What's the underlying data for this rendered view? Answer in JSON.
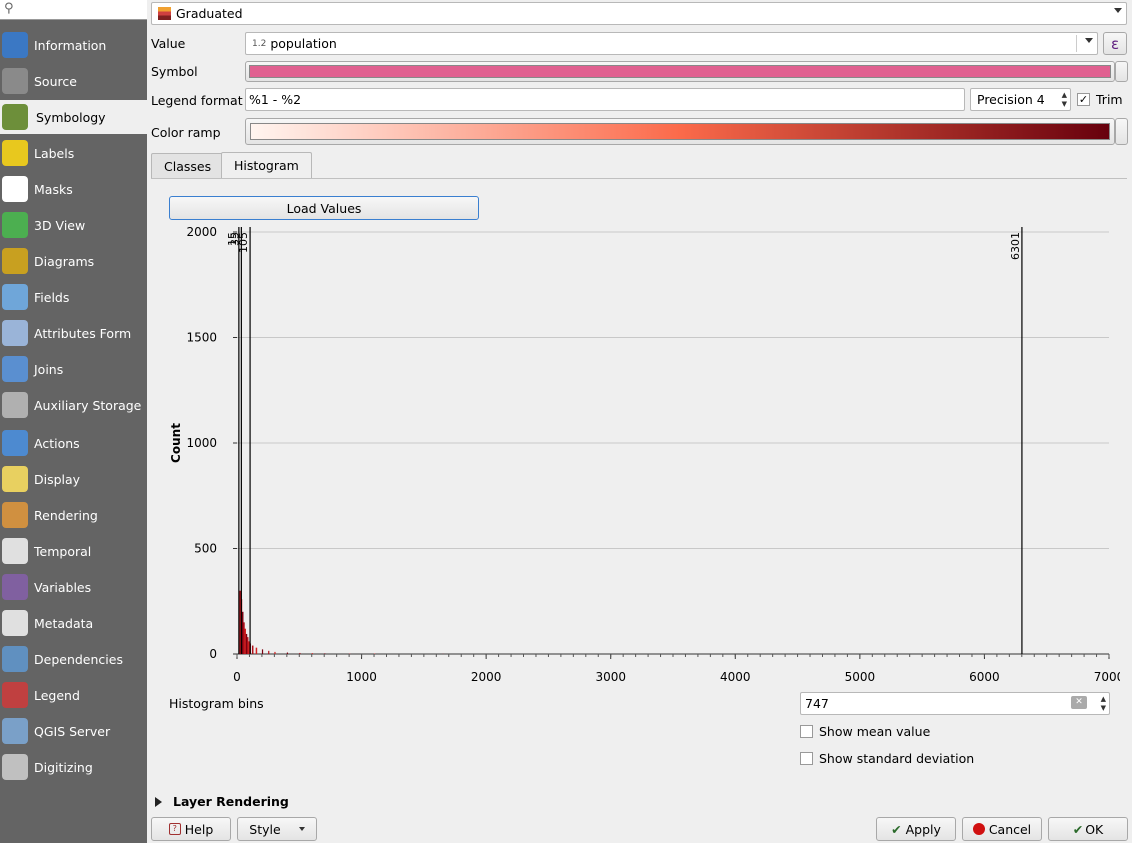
{
  "sidebar": {
    "search_placeholder": "",
    "items": [
      {
        "label": "Information",
        "icon": "info-icon",
        "color": "#3b78c4"
      },
      {
        "label": "Source",
        "icon": "gears-icon",
        "color": "#8a8a8a"
      },
      {
        "label": "Symbology",
        "icon": "paintbrush-icon",
        "color": "#6d8f3a"
      },
      {
        "label": "Labels",
        "icon": "abc-label-icon",
        "color": "#e8c81e"
      },
      {
        "label": "Masks",
        "icon": "abc-mask-icon",
        "color": "#ffffff"
      },
      {
        "label": "3D View",
        "icon": "cube-3d-icon",
        "color": "#4caf50"
      },
      {
        "label": "Diagrams",
        "icon": "diagram-icon",
        "color": "#c8a020"
      },
      {
        "label": "Fields",
        "icon": "fields-icon",
        "color": "#6fa6d9"
      },
      {
        "label": "Attributes Form",
        "icon": "form-icon",
        "color": "#9ab4d8"
      },
      {
        "label": "Joins",
        "icon": "joins-icon",
        "color": "#5a8fd0"
      },
      {
        "label": "Auxiliary Storage",
        "icon": "database-icon",
        "color": "#b0b0b0"
      },
      {
        "label": "Actions",
        "icon": "actions-icon",
        "color": "#4d8ad0"
      },
      {
        "label": "Display",
        "icon": "speech-bubble-icon",
        "color": "#e8d060"
      },
      {
        "label": "Rendering",
        "icon": "brush-icon",
        "color": "#d09040"
      },
      {
        "label": "Temporal",
        "icon": "clock-icon",
        "color": "#e0e0e0"
      },
      {
        "label": "Variables",
        "icon": "epsilon-icon",
        "color": "#8060a0"
      },
      {
        "label": "Metadata",
        "icon": "metadata-icon",
        "color": "#e0e0e0"
      },
      {
        "label": "Dependencies",
        "icon": "dependencies-icon",
        "color": "#6090c0"
      },
      {
        "label": "Legend",
        "icon": "legend-icon",
        "color": "#c04040"
      },
      {
        "label": "QGIS Server",
        "icon": "server-icon",
        "color": "#7aa0c8"
      },
      {
        "label": "Digitizing",
        "icon": "digitizing-icon",
        "color": "#c0c0c0"
      }
    ]
  },
  "renderer": {
    "selected": "Graduated"
  },
  "value": {
    "label": "Value",
    "type_badge": "1.2",
    "field": "population",
    "expression_symbol": "ε"
  },
  "symbol": {
    "label": "Symbol",
    "color": "#e06090"
  },
  "legend_format": {
    "label": "Legend format",
    "value": "%1 - %2",
    "precision": "Precision 4",
    "trim_label": "Trim",
    "trim_checked": "✓"
  },
  "color_ramp": {
    "label": "Color ramp",
    "start": "#fff5f0",
    "mid": "#fb6a4a",
    "end": "#67000d"
  },
  "tabs": [
    {
      "label": "Classes"
    },
    {
      "label": "Histogram"
    }
  ],
  "load_values": "Load Values",
  "chart_data": {
    "type": "bar",
    "ylabel": "Count",
    "xlim": [
      0,
      7000
    ],
    "ylim": [
      0,
      2000
    ],
    "x_ticks": [
      0,
      1000,
      2000,
      3000,
      4000,
      5000,
      6000,
      7000
    ],
    "y_ticks": [
      0,
      500,
      1000,
      1500,
      2000
    ],
    "grid": true,
    "class_breaks": [
      {
        "value": 15,
        "label": "15"
      },
      {
        "value": 35,
        "label": "35"
      },
      {
        "value": 105,
        "label": "105"
      },
      {
        "value": 6301,
        "label": "6301"
      }
    ],
    "bins": [
      {
        "x": 20,
        "y": 300
      },
      {
        "x": 30,
        "y": 260
      },
      {
        "x": 40,
        "y": 200
      },
      {
        "x": 50,
        "y": 150
      },
      {
        "x": 60,
        "y": 120
      },
      {
        "x": 70,
        "y": 95
      },
      {
        "x": 80,
        "y": 80
      },
      {
        "x": 90,
        "y": 60
      },
      {
        "x": 100,
        "y": 50
      },
      {
        "x": 120,
        "y": 40
      },
      {
        "x": 150,
        "y": 30
      },
      {
        "x": 200,
        "y": 22
      },
      {
        "x": 250,
        "y": 15
      },
      {
        "x": 300,
        "y": 10
      },
      {
        "x": 400,
        "y": 7
      },
      {
        "x": 500,
        "y": 5
      },
      {
        "x": 600,
        "y": 4
      },
      {
        "x": 700,
        "y": 3
      },
      {
        "x": 900,
        "y": 2
      },
      {
        "x": 1100,
        "y": 2
      },
      {
        "x": 1650,
        "y": 1
      }
    ],
    "bar_colors": [
      "#b0101a",
      "#d42020",
      "#7a0010"
    ]
  },
  "histogram_bins": {
    "label": "Histogram bins",
    "value": "747"
  },
  "show_mean": {
    "label": "Show mean value"
  },
  "show_std": {
    "label": "Show standard deviation"
  },
  "layer_rendering": {
    "label": "Layer Rendering"
  },
  "footer": {
    "help": "Help",
    "style": "Style",
    "apply": "Apply",
    "cancel": "Cancel",
    "ok": "OK"
  }
}
